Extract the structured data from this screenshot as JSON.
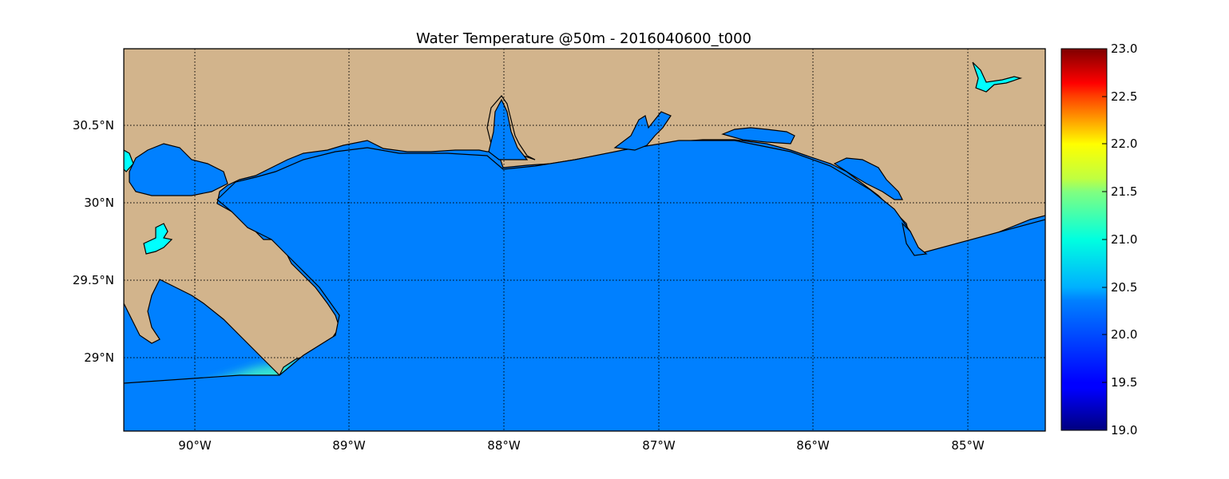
{
  "title": "Water Temperature @50m - 2016040600_t000",
  "map": {
    "lon_ticks": [
      "90°W",
      "89°W",
      "88°W",
      "87°W",
      "86°W",
      "85°W"
    ],
    "lat_ticks": [
      "30.5°N",
      "30°N",
      "29.5°N",
      "29°N"
    ],
    "colors": {
      "land": "#d2b48c",
      "ocean_base": "#0080ff",
      "lake": "#00ffff",
      "grid": "#000000"
    },
    "features": [
      "coastline",
      "land",
      "gulf-water",
      "lakes",
      "temperature-field",
      "lat-lon-grid"
    ]
  },
  "colorbar": {
    "ticks": [
      "23.0",
      "22.5",
      "22.0",
      "21.5",
      "21.0",
      "20.5",
      "20.0",
      "19.5",
      "19.0"
    ],
    "colormap": "jet",
    "vmin": 19.0,
    "vmax": 23.0
  }
}
